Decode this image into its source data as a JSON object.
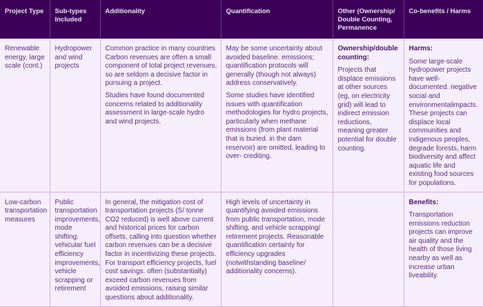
{
  "headers": [
    "Project Type",
    "Sub-types Included",
    "Additionality",
    "Quantification",
    "Other (Ownership/ Double Counting, Permanence",
    "Co-benefits / Harms"
  ],
  "rows": [
    {
      "project_type": "Renewable energy, large scale (cont.)",
      "subtypes": "Hydropower and wind projects",
      "additionality": [
        "Common practice in many countries Carbon revenues are often a small component of total project revenues, so are seldom a decisive factor in pursuing a project.",
        "Studies have found documented concerns related to additionality assessment in large-scale hydro and wind projects."
      ],
      "quantification": [
        "May be some uncertainty about avoided baseline. emissions; quantification protocols will generally (though not always) address conservatively.",
        "Some studies have identified issues with quantification methodologies for hydro projects, particularly when methane emissions (from plant material that is buried. in the dam reservoir) are omitted, leading to over- crediting."
      ],
      "other_label": "Ownership/double counting:",
      "other_text": "Projects that displace emissions at other sources (eg, on electricity grid) will lead to indirect emission reductions, meaning greater potential for double counting.",
      "cobenefits_label": "Harms:",
      "cobenefits_text": "Some large-scale hydropower projects have well-documented. negative social and environmentalimpacts. These projects can displace local communities and indigenous peoples, degrade forests, harm biodiversity and affect aquatic life and existing food sources for populations."
    },
    {
      "project_type": "Low-carbon transportation measures",
      "subtypes": "Public transportation improvements, mode shifting. vehicular fuel efficiency improvements, vehicle scrapping or retirement",
      "additionality": [
        "In general, the mitigation cost of transportation projects (S/ tonne CO2 reduced) is well above current and historical prices for carbon offsets, calling into question whether carbon revenues can be a decisive factor in incentivizing these projects. For transport efficiency projects, fuel cost savings. often (substantially) exceed carbon revenues from avoided emissions, raising similar questions about additionality."
      ],
      "quantification": [
        "High levels of uncertainty in quantifying avoided emissions from public transportation, mode shifting, and vehicle scrapping/ retirement projects. Reasonable quantification certainty for efficiency upgrades (notwithstanding baseline/ additionality concerns)."
      ],
      "cobenefits_label": "Benefits:",
      "cobenefits_text": "Transportation emissions reduction projects can improve air quality and the health of those living nearby as well as increase urban liveability."
    }
  ]
}
